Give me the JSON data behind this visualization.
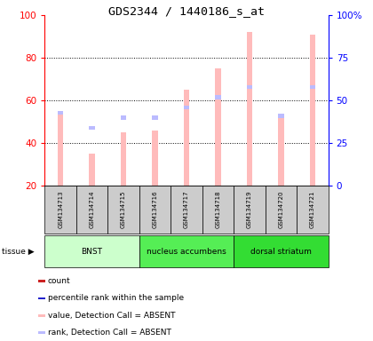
{
  "title": "GDS2344 / 1440186_s_at",
  "samples": [
    "GSM134713",
    "GSM134714",
    "GSM134715",
    "GSM134716",
    "GSM134717",
    "GSM134718",
    "GSM134719",
    "GSM134720",
    "GSM134721"
  ],
  "value_absent": [
    54,
    35,
    45,
    46,
    65,
    75,
    92,
    52,
    91
  ],
  "rank_absent": [
    43,
    34,
    40,
    40,
    46,
    52,
    58,
    41,
    58
  ],
  "ylim_left": [
    20,
    100
  ],
  "ylim_right": [
    0,
    100
  ],
  "yticks_left": [
    20,
    40,
    60,
    80,
    100
  ],
  "yticks_right": [
    0,
    25,
    50,
    75,
    100
  ],
  "yticklabels_right": [
    "0",
    "25",
    "50",
    "75",
    "100%"
  ],
  "absent_bar_color": "#ffbbbb",
  "rank_absent_color": "#bbbbff",
  "label_area_color": "#cccccc",
  "tissue_groups": [
    {
      "label": "BNST",
      "start": 0,
      "end": 3,
      "color": "#ccffcc"
    },
    {
      "label": "nucleus accumbens",
      "start": 3,
      "end": 6,
      "color": "#55ee55"
    },
    {
      "label": "dorsal striatum",
      "start": 6,
      "end": 9,
      "color": "#33dd33"
    }
  ]
}
